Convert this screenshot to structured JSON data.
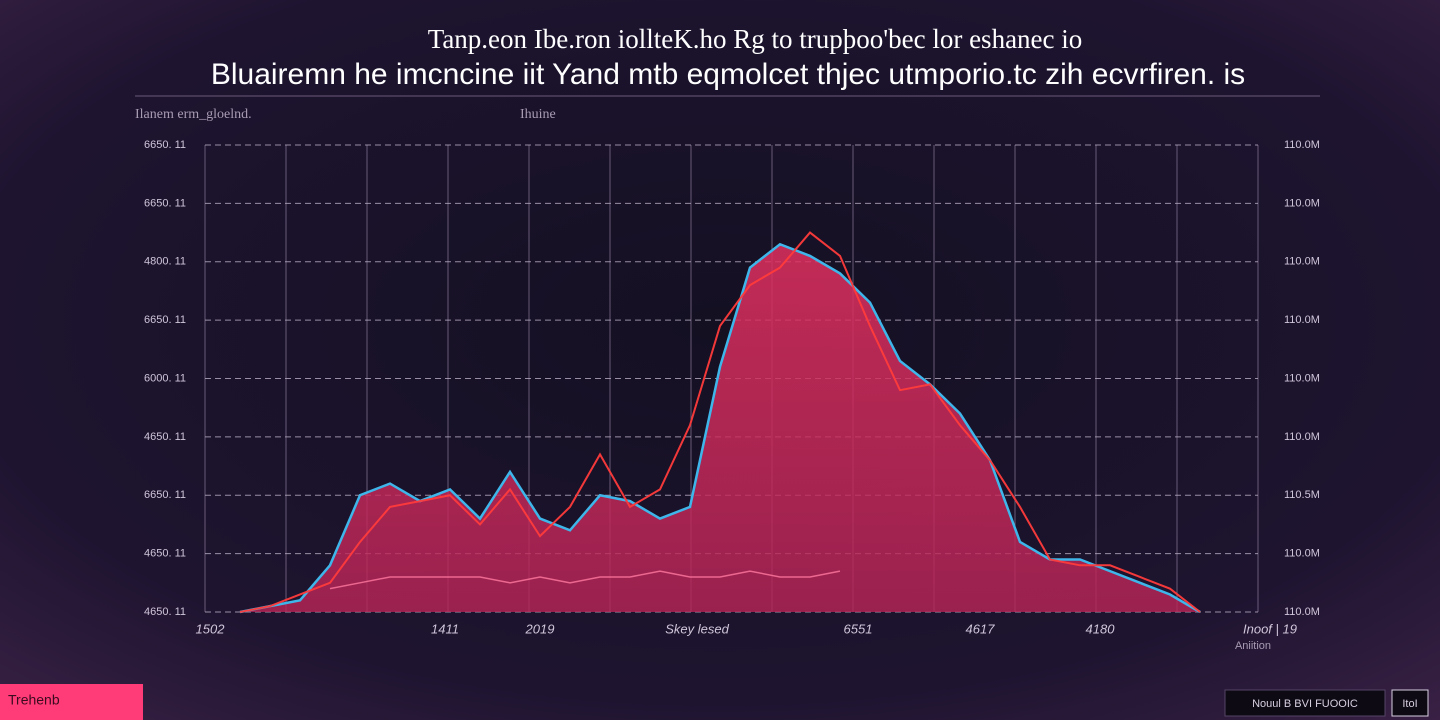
{
  "chart_data": {
    "type": "area",
    "title": [
      "Tanp.eon Ibe.ron iollteK.ho Rg to trupþoo'bec lor eshanec io",
      "Bluairemn he imcncine iit Yand mtb eqmolcet thjec utmporio.tc zih ecvrfiren. is"
    ],
    "subtitles": [
      "Ilanem erm_gloelnd.",
      "Ihuine"
    ],
    "ylim": [
      0,
      8
    ],
    "yticks": [
      0,
      1,
      2,
      3,
      4,
      5,
      6,
      7,
      8
    ],
    "y_axis_labels": [
      "4650. 11",
      "4650. 11",
      "6650. 11",
      "4650. 11",
      "6000. 11",
      "6650. 11",
      "4800. 11",
      "6650. 11",
      "6650. 11"
    ],
    "y2_axis_labels": [
      "110.0M",
      "110.0M",
      "110.5M",
      "110.0M",
      "110.0M",
      "110.0M",
      "110.0M",
      "110.0M",
      "110.0M"
    ],
    "x_axis_labels": [
      "1502",
      "1411",
      "2019",
      "Skey lesed",
      "6551",
      "4617",
      "4180",
      "Inoof | 19"
    ],
    "x_axis_note": "Aniition",
    "grid": true,
    "series": [
      {
        "name": "area",
        "color": "#e0305f",
        "outline": "#3fb6ea",
        "values": [
          0,
          0.1,
          0.2,
          0.8,
          2.0,
          2.2,
          1.9,
          2.1,
          1.6,
          2.4,
          1.6,
          1.4,
          2.0,
          1.9,
          1.6,
          1.8,
          4.2,
          5.9,
          6.3,
          6.1,
          5.8,
          5.3,
          4.3,
          3.9,
          3.4,
          2.6,
          1.2,
          0.9,
          0.9,
          0.7,
          0.5,
          0.3,
          0
        ]
      },
      {
        "name": "red",
        "color": "#ff3b3b",
        "values": [
          0,
          0.1,
          0.3,
          0.5,
          1.2,
          1.8,
          1.9,
          2.0,
          1.5,
          2.1,
          1.3,
          1.8,
          2.7,
          1.8,
          2.1,
          3.2,
          4.9,
          5.6,
          5.9,
          6.5,
          6.1,
          4.9,
          3.8,
          3.9,
          3.2,
          2.6,
          1.8,
          0.9,
          0.8,
          0.8,
          0.6,
          0.4,
          0
        ]
      },
      {
        "name": "low",
        "color": "#ff7aa0",
        "values": [
          null,
          null,
          null,
          0.4,
          0.5,
          0.6,
          0.6,
          0.6,
          0.6,
          0.5,
          0.6,
          0.5,
          0.6,
          0.6,
          0.7,
          0.6,
          0.6,
          0.7,
          0.6,
          0.6,
          0.7,
          null,
          null,
          null,
          null,
          null,
          null,
          null,
          null,
          null,
          null,
          null,
          null
        ]
      }
    ],
    "buttons": [
      "Trehenb",
      "Nouul B BVI FUOOIC",
      "ItoI"
    ]
  }
}
